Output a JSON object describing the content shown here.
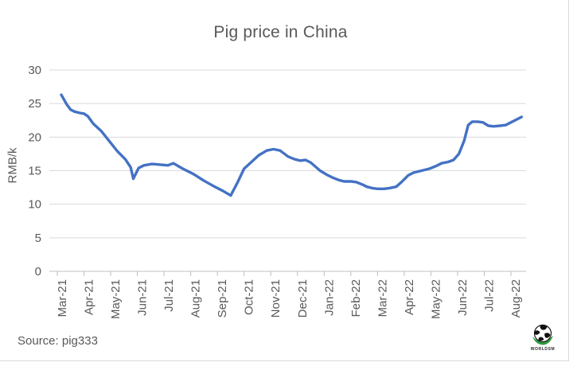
{
  "figure": {
    "title": "Pig price in China",
    "source": "Source: pig333",
    "logo_text": "WORLDSM"
  },
  "colors": {
    "line": "#4472C4",
    "text_muted": "#595959",
    "gridline": "#D9D9D9",
    "axis": "#BFBFBF",
    "logo_green": "#2F9E3F"
  },
  "chart_data": {
    "type": "line",
    "title": "Pig price in China",
    "xlabel": "",
    "ylabel": "RMB/k",
    "ylim": [
      0,
      30
    ],
    "y_ticks": [
      0,
      5,
      10,
      15,
      20,
      25,
      30
    ],
    "x_tick_labels": [
      "Mar-21",
      "Apr-21",
      "May-21",
      "Jun-21",
      "Jul-21",
      "Aug-21",
      "Sep-21",
      "Oct-21",
      "Nov-21",
      "Dec-21",
      "Jan-22",
      "Feb-22",
      "Mar-22",
      "Apr-22",
      "May-22",
      "Jun-22",
      "Jul-22",
      "Aug-22"
    ],
    "grid": "horizontal",
    "legend": "none",
    "line_color": "#4472C4",
    "x_unit": "months since Mar-21",
    "series": [
      {
        "name": "Pig price (RMB/kg)",
        "points": [
          [
            0,
            26.3
          ],
          [
            0.1,
            25.6
          ],
          [
            0.2,
            24.9
          ],
          [
            0.35,
            24.1
          ],
          [
            0.5,
            23.8
          ],
          [
            0.7,
            23.6
          ],
          [
            0.85,
            23.5
          ],
          [
            1.0,
            23.1
          ],
          [
            1.2,
            22.0
          ],
          [
            1.5,
            20.9
          ],
          [
            1.8,
            19.4
          ],
          [
            2.1,
            17.9
          ],
          [
            2.4,
            16.7
          ],
          [
            2.6,
            15.5
          ],
          [
            2.7,
            13.8
          ],
          [
            2.9,
            15.4
          ],
          [
            3.1,
            15.8
          ],
          [
            3.4,
            16.0
          ],
          [
            3.7,
            15.9
          ],
          [
            4.0,
            15.8
          ],
          [
            4.2,
            16.1
          ],
          [
            4.55,
            15.3
          ],
          [
            4.95,
            14.5
          ],
          [
            5.35,
            13.5
          ],
          [
            5.75,
            12.6
          ],
          [
            6.05,
            12.0
          ],
          [
            6.35,
            11.3
          ],
          [
            6.6,
            13.2
          ],
          [
            6.85,
            15.3
          ],
          [
            7.1,
            16.2
          ],
          [
            7.4,
            17.3
          ],
          [
            7.7,
            18.0
          ],
          [
            7.95,
            18.2
          ],
          [
            8.2,
            18.0
          ],
          [
            8.5,
            17.1
          ],
          [
            8.75,
            16.7
          ],
          [
            8.95,
            16.5
          ],
          [
            9.15,
            16.6
          ],
          [
            9.35,
            16.2
          ],
          [
            9.7,
            15.0
          ],
          [
            9.95,
            14.4
          ],
          [
            10.15,
            14.0
          ],
          [
            10.4,
            13.6
          ],
          [
            10.6,
            13.4
          ],
          [
            10.85,
            13.4
          ],
          [
            11.05,
            13.3
          ],
          [
            11.3,
            12.9
          ],
          [
            11.45,
            12.6
          ],
          [
            11.65,
            12.4
          ],
          [
            11.85,
            12.3
          ],
          [
            12.1,
            12.3
          ],
          [
            12.3,
            12.4
          ],
          [
            12.55,
            12.6
          ],
          [
            12.75,
            13.3
          ],
          [
            13.0,
            14.3
          ],
          [
            13.2,
            14.7
          ],
          [
            13.5,
            15.0
          ],
          [
            13.8,
            15.3
          ],
          [
            14.05,
            15.7
          ],
          [
            14.25,
            16.1
          ],
          [
            14.5,
            16.3
          ],
          [
            14.7,
            16.6
          ],
          [
            14.9,
            17.5
          ],
          [
            15.1,
            19.5
          ],
          [
            15.25,
            21.8
          ],
          [
            15.4,
            22.3
          ],
          [
            15.6,
            22.3
          ],
          [
            15.8,
            22.2
          ],
          [
            16.0,
            21.7
          ],
          [
            16.2,
            21.6
          ],
          [
            16.45,
            21.7
          ],
          [
            16.65,
            21.8
          ],
          [
            16.85,
            22.2
          ],
          [
            17.05,
            22.6
          ],
          [
            17.25,
            23.0
          ]
        ]
      }
    ]
  }
}
